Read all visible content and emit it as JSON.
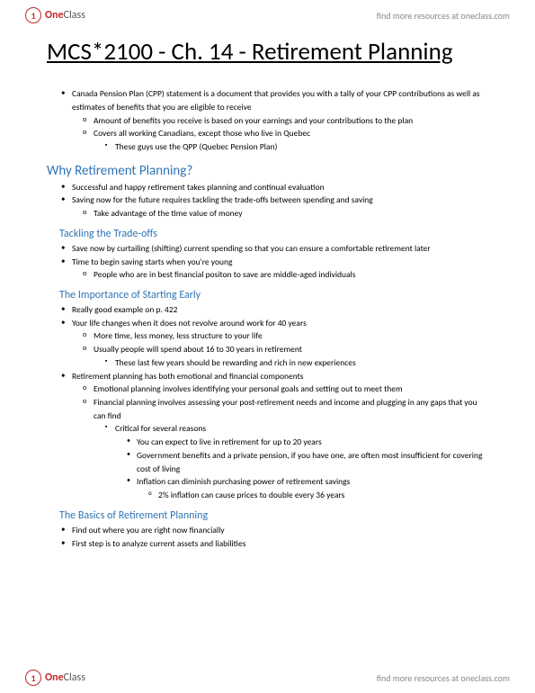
{
  "brand": {
    "one": "One",
    "class": "Class",
    "tagline": "find more resources at oneclass.com"
  },
  "title": "MCS*2100  - Ch. 14  - Retirement Planning ",
  "intro": {
    "p1": "Canada Pension Plan (CPP) statement is a document that provides you with a tally of your CPP contributions as well as estimates of benefits that you are eligible to receive",
    "p1a": "Amount of benefits you receive is based on your earnings and your contributions to the plan",
    "p1b": "Covers all working Canadians, except those who live in Quebec",
    "p1b1": "These guys use the QPP (Quebec Pension Plan)"
  },
  "s1": {
    "h": "Why Retirement Planning?",
    "a": "Successful and happy retirement takes planning and continual evaluation",
    "b": "Saving now for the future requires tackling the trade-offs between spending and saving",
    "b1": "Take advantage of the time value of money"
  },
  "s2": {
    "h": "Tackling the Trade-offs",
    "a": "Save now by curtailing (shifting) current spending so that you can ensure a comfortable retirement later",
    "b": "Time to begin saving starts when you're young",
    "b1": "People who are in best financial positon to save are middle-aged individuals"
  },
  "s3": {
    "h": "The Importance of Starting Early",
    "a": "Really good example on p. 422",
    "b": "Your life changes when it does not revolve around work for 40 years",
    "b1": "More time, less money, less structure to your life",
    "b2": "Usually people will spend about 16 to 30 years in retirement",
    "b2a": "These last few years should be rewarding and rich in new experiences",
    "c": "Retirement planning has both emotional and financial components",
    "c1": "Emotional planning involves identifying your personal goals and setting out to meet them",
    "c2": "Financial planning involves assessing your post-retirement needs and income and plugging in any gaps that you can find",
    "c2a": "Critical for several reasons",
    "c2a1": "You can expect to live in retirement for up to 20 years",
    "c2a2": "Government benefits and a private pension, if you have one, are often most insufficient for covering cost of living",
    "c2a3": "Inflation can diminish purchasing power of retirement savings",
    "c2a3a": "2% inflation can cause prices to double every 36 years"
  },
  "s4": {
    "h": "The Basics of Retirement Planning",
    "a": "Find out where you are right now financially",
    "b": "First step is to analyze current assets and liabilities"
  }
}
